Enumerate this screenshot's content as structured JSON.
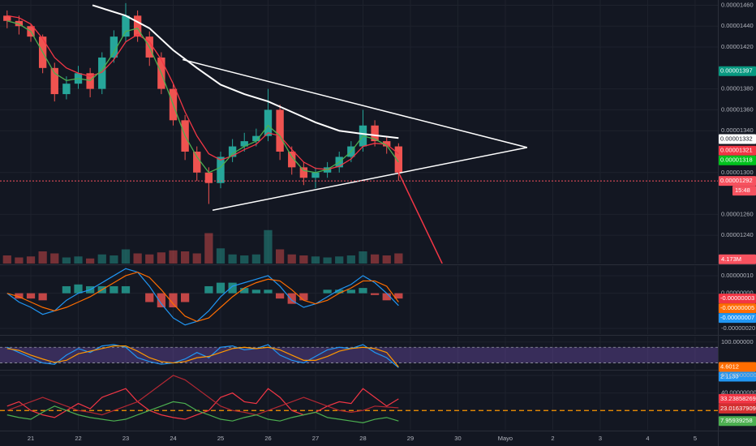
{
  "chart_data": [
    {
      "type": "candlestick",
      "grid": true,
      "x": [
        20.5,
        20.75,
        21,
        21.25,
        21.5,
        21.75,
        22,
        22.25,
        22.5,
        22.75,
        23,
        23.25,
        23.5,
        23.75,
        24,
        24.25,
        24.5,
        24.75,
        25,
        25.25,
        25.5,
        25.75,
        26,
        26.25,
        26.5,
        26.75,
        27,
        27.25,
        27.5,
        27.75,
        28,
        28.25,
        28.5,
        28.75
      ],
      "xlim": [
        20.35,
        35.48
      ],
      "xticks": [
        21,
        22,
        23,
        24,
        25,
        26,
        27,
        28,
        29,
        30,
        {
          "value": 31,
          "label": "Mayo"
        },
        {
          "value": 32,
          "label": "2"
        },
        {
          "value": 33,
          "label": "3"
        },
        {
          "value": 34,
          "label": "4"
        },
        {
          "value": 35,
          "label": "5"
        }
      ],
      "ylim": [
        1.213e-05,
        1.465e-05
      ],
      "yticks": [
        {
          "value": 1.46e-05,
          "label": "0.00001460"
        },
        {
          "value": 1.44e-05,
          "label": "0.00001440"
        },
        {
          "value": 1.42e-05,
          "label": "0.00001420"
        },
        {
          "value": 1.38e-05,
          "label": "0.00001380"
        },
        {
          "value": 1.36e-05,
          "label": "0.00001360"
        },
        {
          "value": 1.34e-05,
          "label": "0.00001340"
        },
        {
          "value": 1.3e-05,
          "label": "0.00001300"
        },
        {
          "value": 1.26e-05,
          "label": "0.00001260"
        },
        {
          "value": 1.24e-05,
          "label": "0.00001240"
        }
      ],
      "up_color": "#26a69a",
      "down_color": "#ef5350",
      "candles": {
        "open": [
          1.45e-05,
          1.445e-05,
          1.44e-05,
          1.43e-05,
          1.4e-05,
          1.375e-05,
          1.385e-05,
          1.395e-05,
          1.38e-05,
          1.41e-05,
          1.43e-05,
          1.45e-05,
          1.43e-05,
          1.41e-05,
          1.38e-05,
          1.35e-05,
          1.32e-05,
          1.3e-05,
          1.29e-05,
          1.315e-05,
          1.325e-05,
          1.33e-05,
          1.335e-05,
          1.36e-05,
          1.32e-05,
          1.305e-05,
          1.295e-05,
          1.3e-05,
          1.305e-05,
          1.315e-05,
          1.325e-05,
          1.345e-05,
          1.33e-05,
          1.325e-05
        ],
        "high": [
          1.455e-05,
          1.45e-05,
          1.442e-05,
          1.432e-05,
          1.405e-05,
          1.392e-05,
          1.402e-05,
          1.4e-05,
          1.415e-05,
          1.436e-05,
          1.462e-05,
          1.455e-05,
          1.435e-05,
          1.415e-05,
          1.385e-05,
          1.355e-05,
          1.325e-05,
          1.305e-05,
          1.32e-05,
          1.332e-05,
          1.338e-05,
          1.342e-05,
          1.38e-05,
          1.365e-05,
          1.325e-05,
          1.31e-05,
          1.305e-05,
          1.31e-05,
          1.32e-05,
          1.33e-05,
          1.36e-05,
          1.35e-05,
          1.335e-05,
          1.328e-05
        ],
        "low": [
          1.438e-05,
          1.432e-05,
          1.425e-05,
          1.395e-05,
          1.368e-05,
          1.37e-05,
          1.38e-05,
          1.372e-05,
          1.375e-05,
          1.405e-05,
          1.425e-05,
          1.425e-05,
          1.402e-05,
          1.375e-05,
          1.345e-05,
          1.312e-05,
          1.292e-05,
          1.27e-05,
          1.285e-05,
          1.31e-05,
          1.32e-05,
          1.325e-05,
          1.33e-05,
          1.312e-05,
          1.298e-05,
          1.288e-05,
          1.285e-05,
          1.295e-05,
          1.3e-05,
          1.31e-05,
          1.32e-05,
          1.325e-05,
          1.318e-05,
          1.292e-05
        ],
        "close": [
          1.445e-05,
          1.44e-05,
          1.43e-05,
          1.4e-05,
          1.375e-05,
          1.385e-05,
          1.395e-05,
          1.38e-05,
          1.41e-05,
          1.43e-05,
          1.45e-05,
          1.43e-05,
          1.41e-05,
          1.38e-05,
          1.35e-05,
          1.32e-05,
          1.3e-05,
          1.29e-05,
          1.315e-05,
          1.325e-05,
          1.33e-05,
          1.335e-05,
          1.36e-05,
          1.32e-05,
          1.305e-05,
          1.295e-05,
          1.3e-05,
          1.305e-05,
          1.315e-05,
          1.325e-05,
          1.345e-05,
          1.33e-05,
          1.325e-05,
          1.3e-05
        ]
      },
      "volume": [
        8000000,
        6000000,
        7000000,
        12000000,
        10000000,
        6000000,
        7000000,
        5000000,
        9000000,
        8000000,
        14000000,
        10000000,
        9000000,
        11000000,
        13000000,
        12000000,
        10000000,
        30000000,
        15000000,
        9000000,
        8000000,
        9000000,
        33000000,
        14000000,
        9000000,
        8000000,
        7000000,
        6000000,
        7000000,
        8000000,
        12000000,
        9000000,
        8000000,
        10000000
      ],
      "y2lim": [
        0,
        40000000
      ],
      "volume_tag": {
        "value": 4173000,
        "label": "4.173M",
        "color": "#f7525f"
      },
      "series": [
        {
          "color": "#ffffff",
          "x": [
            22.3,
            23,
            23.5,
            24,
            24.5,
            25,
            25.5,
            26,
            26.5,
            27,
            27.5,
            28,
            28.75
          ],
          "values": [
            1.46e-05,
            1.45e-05,
            1.438e-05,
            1.417e-05,
            1.4e-05,
            1.384e-05,
            1.375e-05,
            1.368e-05,
            1.358e-05,
            1.348e-05,
            1.34e-05,
            1.337e-05,
            1.333e-05
          ]
        },
        {
          "color": "#f23645",
          "values": [
            1.45e-05,
            1.448e-05,
            1.442e-05,
            1.428e-05,
            1.41e-05,
            1.4e-05,
            1.395e-05,
            1.392e-05,
            1.396e-05,
            1.408e-05,
            1.425e-05,
            1.432e-05,
            1.425e-05,
            1.408e-05,
            1.385e-05,
            1.358e-05,
            1.335e-05,
            1.318e-05,
            1.312e-05,
            1.316e-05,
            1.322e-05,
            1.327e-05,
            1.338e-05,
            1.335e-05,
            1.322e-05,
            1.31e-05,
            1.304e-05,
            1.303e-05,
            1.306e-05,
            1.313e-05,
            1.325e-05,
            1.328e-05,
            1.327e-05,
            1.318e-05
          ]
        },
        {
          "color": "#4caf50",
          "values": [
            1.445e-05,
            1.442e-05,
            1.435e-05,
            1.415e-05,
            1.395e-05,
            1.388e-05,
            1.39e-05,
            1.388e-05,
            1.398e-05,
            1.415e-05,
            1.435e-05,
            1.438e-05,
            1.42e-05,
            1.395e-05,
            1.365e-05,
            1.335e-05,
            1.315e-05,
            1.3e-05,
            1.305e-05,
            1.318e-05,
            1.325e-05,
            1.33e-05,
            1.345e-05,
            1.335e-05,
            1.315e-05,
            1.302e-05,
            1.3e-05,
            1.303e-05,
            1.31e-05,
            1.32e-05,
            1.335e-05,
            1.332e-05,
            1.326e-05,
            1.31e-05
          ]
        }
      ],
      "trendlines": [
        {
          "color": "#ffffff",
          "x": [
            24.2,
            31.46
          ],
          "y": [
            1.408e-05,
            1.324e-05
          ]
        },
        {
          "color": "#ffffff",
          "x": [
            24.83,
            31.46
          ],
          "y": [
            1.264e-05,
            1.324e-05
          ]
        },
        {
          "color": "#f23645",
          "x": [
            28.73,
            29.67
          ],
          "y": [
            1.302e-05,
            1.213e-05
          ]
        }
      ],
      "tags": [
        {
          "value": 1.397e-05,
          "color": "#089981"
        },
        {
          "value": 1.332e-05,
          "color": "#ffffff"
        },
        {
          "value": 1.321e-05,
          "color": "#f23645"
        },
        {
          "value": 1.318e-05,
          "color": "#00c21d"
        },
        {
          "value": 1.292e-05,
          "color": "#f7525f",
          "line": true
        }
      ],
      "countdown": "15:48"
    },
    {
      "type": "combo",
      "grid": true,
      "ylim": [
        -2.32e-07,
        1.55e-07
      ],
      "yticks": [
        {
          "value": 1e-07,
          "label": "0.00000010"
        },
        {
          "value": 0,
          "label": "0.00000000"
        },
        {
          "value": -2e-07,
          "label": "-0.00000020"
        }
      ],
      "up_color": "#26a69a",
      "down_color": "#ef5350",
      "series": [
        {
          "style": "bar",
          "values": [
            0,
            -3e-08,
            -3e-08,
            -4e-08,
            0,
            4e-08,
            5e-08,
            4e-08,
            4e-08,
            4e-08,
            4e-08,
            0,
            -5e-08,
            -8e-08,
            -8e-08,
            -5e-08,
            0,
            4e-08,
            6e-08,
            6e-08,
            3e-08,
            2e-08,
            2e-08,
            -3e-08,
            -6e-08,
            -4e-08,
            0,
            2e-08,
            2e-08,
            2e-08,
            3e-08,
            -1e-08,
            -4e-08,
            -3e-08
          ]
        },
        {
          "style": "line",
          "color": "#2196f3",
          "values": [
            0,
            -5e-08,
            -8e-08,
            -1.2e-07,
            -1e-07,
            -4e-08,
            0,
            2e-08,
            6e-08,
            1e-07,
            1.4e-07,
            1.2e-07,
            4e-08,
            -6e-08,
            -1.4e-07,
            -1.8e-07,
            -1.6e-07,
            -1e-07,
            -2e-08,
            4e-08,
            6e-08,
            8e-08,
            1e-07,
            4e-08,
            -4e-08,
            -8e-08,
            -6e-08,
            -2e-08,
            2e-08,
            5e-08,
            1e-07,
            6e-08,
            0,
            -7e-08
          ]
        },
        {
          "style": "line",
          "color": "#ff6d00",
          "values": [
            0,
            -2e-08,
            -5e-08,
            -8e-08,
            -1e-07,
            -8e-08,
            -5e-08,
            -2e-08,
            2e-08,
            6e-08,
            1e-07,
            1.2e-07,
            9e-08,
            2e-08,
            -6e-08,
            -1.3e-07,
            -1.6e-07,
            -1.4e-07,
            -8e-08,
            -2e-08,
            3e-08,
            6e-08,
            8e-08,
            7e-08,
            2e-08,
            -4e-08,
            -6e-08,
            -4e-08,
            0,
            3e-08,
            7e-08,
            7e-08,
            4e-08,
            -5e-08
          ]
        }
      ],
      "tags": [
        {
          "value": -3e-08,
          "label": "-0.00000003",
          "color": "#f23645"
        },
        {
          "value": -5e-08,
          "label": "-0.00000005",
          "color": "#ff6d00"
        },
        {
          "value": -7e-08,
          "label": "-0.00000007",
          "color": "#2196f3"
        }
      ]
    },
    {
      "type": "line",
      "grid": true,
      "ylim": [
        -3,
        121
      ],
      "yticks": [
        {
          "value": 100,
          "label": "100.000000"
        }
      ],
      "band": [
        20,
        80
      ],
      "band_color": "#7e57c2",
      "series": [
        {
          "color": "#2196f3",
          "values": [
            80,
            60,
            40,
            20,
            15,
            50,
            75,
            60,
            85,
            90,
            80,
            40,
            25,
            15,
            20,
            35,
            60,
            40,
            80,
            85,
            70,
            75,
            90,
            50,
            30,
            20,
            45,
            70,
            80,
            75,
            90,
            60,
            40,
            2.113
          ]
        },
        {
          "color": "#ff9800",
          "values": [
            75,
            68,
            50,
            35,
            22,
            30,
            55,
            65,
            75,
            85,
            85,
            65,
            40,
            25,
            20,
            25,
            40,
            45,
            60,
            75,
            80,
            75,
            80,
            70,
            50,
            30,
            30,
            45,
            65,
            75,
            80,
            75,
            60,
            4.6012
          ]
        }
      ],
      "tags": [
        {
          "value": 4.6012,
          "color": "#ff6d00"
        },
        {
          "value": 2.113,
          "label": "2.1130",
          "color": "#2196f3"
        }
      ]
    },
    {
      "type": "line",
      "grid": true,
      "ylim": [
        -2,
        64.6
      ],
      "yticks": [
        {
          "value": 60,
          "label": "60.00000000"
        },
        {
          "value": 40,
          "label": "40.00000000"
        }
      ],
      "hlines": [
        {
          "value": 20,
          "color": "#ff9800"
        }
      ],
      "series": [
        {
          "color": "#f23645",
          "values": [
            25,
            30,
            20,
            15,
            12,
            20,
            28,
            22,
            35,
            40,
            45,
            30,
            20,
            15,
            12,
            10,
            15,
            20,
            35,
            40,
            30,
            28,
            45,
            35,
            20,
            15,
            18,
            25,
            30,
            28,
            45,
            35,
            25,
            33.23858269
          ]
        },
        {
          "color": "#b22833",
          "values": [
            20,
            25,
            30,
            35,
            30,
            25,
            20,
            18,
            15,
            20,
            25,
            30,
            40,
            50,
            60,
            55,
            45,
            35,
            25,
            20,
            18,
            15,
            20,
            25,
            30,
            35,
            30,
            25,
            20,
            18,
            20,
            25,
            24,
            23.01637909
          ]
        },
        {
          "color": "#4caf50",
          "values": [
            15,
            12,
            10,
            18,
            25,
            20,
            15,
            12,
            10,
            8,
            10,
            15,
            20,
            25,
            30,
            28,
            20,
            15,
            10,
            8,
            12,
            15,
            10,
            8,
            12,
            15,
            18,
            12,
            10,
            8,
            6,
            10,
            12,
            7.95939258
          ]
        }
      ],
      "tags": [
        {
          "value": 33.23858269,
          "color": "#f23645"
        },
        {
          "value": 23.01637909,
          "color": "#d32f2f"
        },
        {
          "value": 7.95939258,
          "color": "#4caf50"
        }
      ]
    }
  ]
}
